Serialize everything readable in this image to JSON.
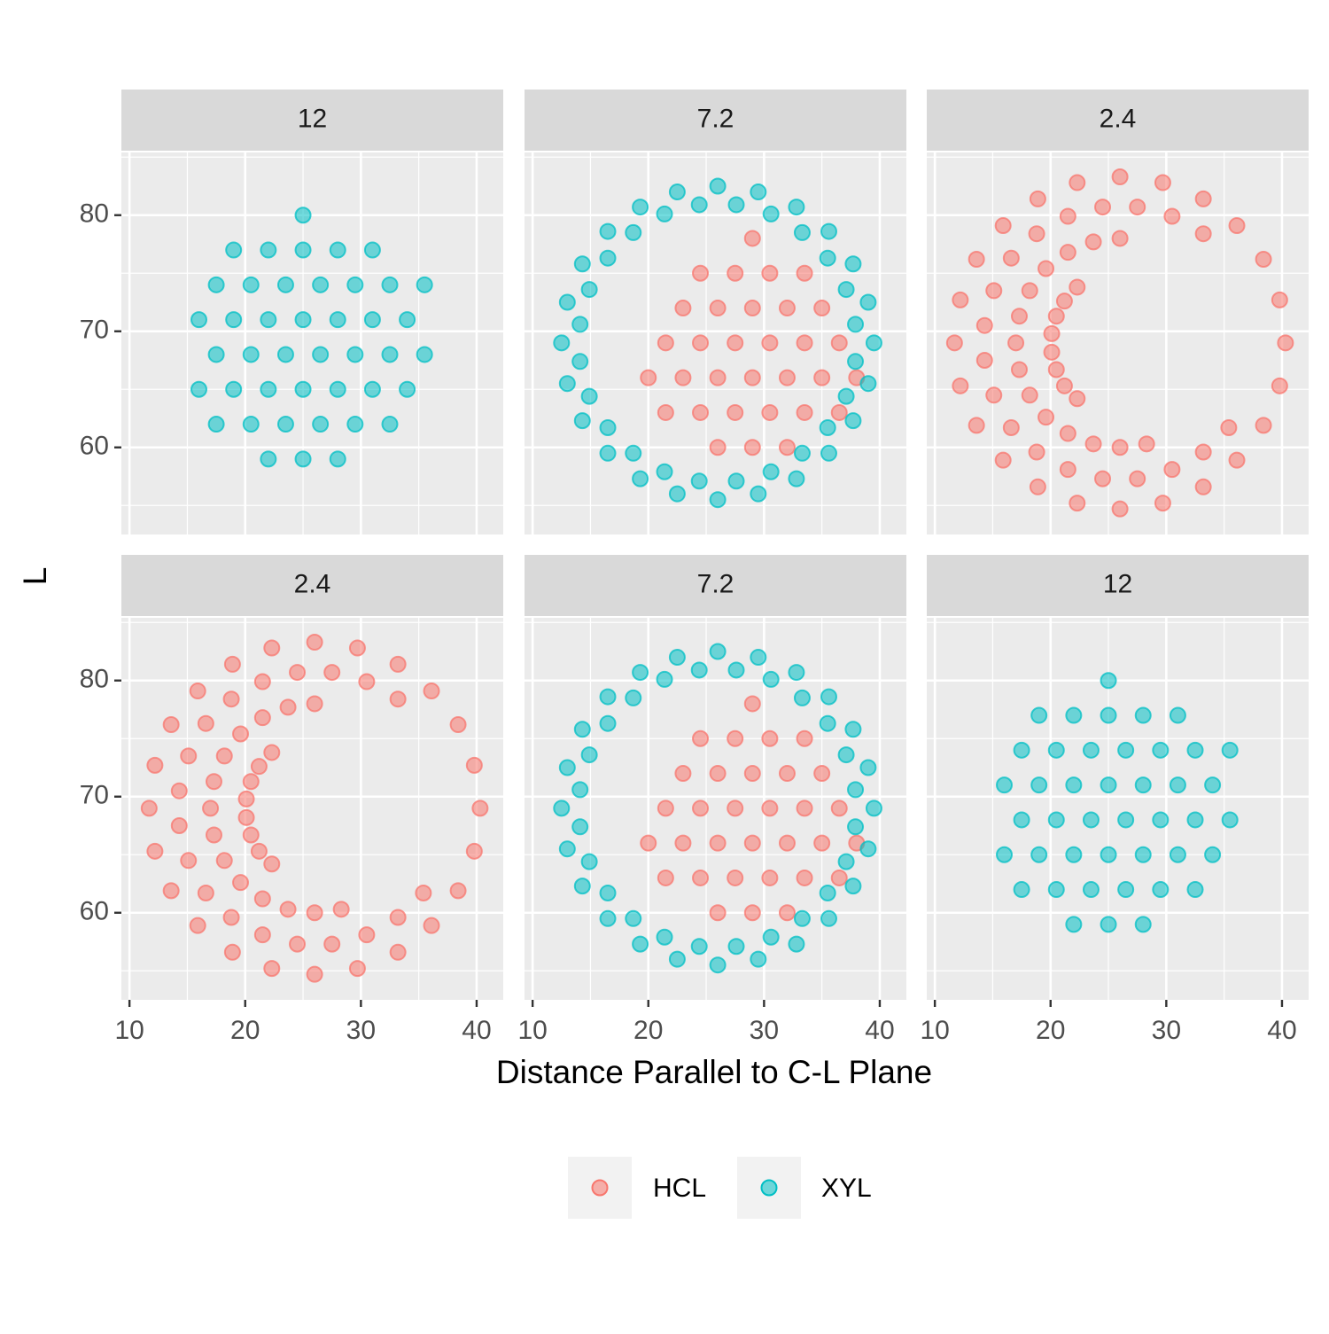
{
  "xlabel": "Distance Parallel to C-L Plane",
  "ylabel": "L",
  "chart_data": [
    {
      "type": "scatter",
      "title": "12",
      "xlim": [
        9.3,
        42.3
      ],
      "ylim": [
        52.5,
        85.4
      ],
      "xticks": [
        10,
        20,
        30,
        40
      ],
      "yticks": [
        60,
        70,
        80
      ],
      "xminor": [
        15,
        25,
        35
      ],
      "yminor": [
        55,
        65,
        75,
        85
      ],
      "grid": true,
      "series": [
        {
          "name": "XYL",
          "color": "#00BFC4",
          "alpha": 0.55,
          "x": [
            22,
            25,
            28,
            17.5,
            20.5,
            23.5,
            26.5,
            29.5,
            32.5,
            16,
            19,
            22,
            25,
            28,
            31,
            34,
            17.5,
            20.5,
            23.5,
            26.5,
            29.5,
            32.5,
            35.5,
            16,
            19,
            22,
            25,
            28,
            31,
            34,
            17.5,
            20.5,
            23.5,
            26.5,
            29.5,
            32.5,
            35.5,
            19,
            22,
            25,
            28,
            31,
            25
          ],
          "values": [
            59,
            59,
            59,
            62,
            62,
            62,
            62,
            62,
            62,
            65,
            65,
            65,
            65,
            65,
            65,
            65,
            68,
            68,
            68,
            68,
            68,
            68,
            68,
            71,
            71,
            71,
            71,
            71,
            71,
            71,
            74,
            74,
            74,
            74,
            74,
            74,
            74,
            77,
            77,
            77,
            77,
            77,
            80
          ]
        }
      ]
    },
    {
      "type": "scatter",
      "title": "7.2",
      "xlim": [
        9.3,
        42.3
      ],
      "ylim": [
        52.5,
        85.4
      ],
      "xticks": [
        10,
        20,
        30,
        40
      ],
      "yticks": [
        60,
        70,
        80
      ],
      "xminor": [
        15,
        25,
        35
      ],
      "yminor": [
        55,
        65,
        75,
        85
      ],
      "grid": true,
      "series": [
        {
          "name": "HCL",
          "color": "#F8766D",
          "alpha": 0.55,
          "x": [
            26,
            29,
            32,
            21.5,
            24.5,
            27.5,
            30.5,
            33.5,
            36.5,
            20,
            23,
            26,
            29,
            32,
            35,
            38,
            21.5,
            24.5,
            27.5,
            30.5,
            33.5,
            36.5,
            23,
            26,
            29,
            32,
            35,
            24.5,
            27.5,
            30.5,
            33.5,
            29
          ],
          "values": [
            60,
            60,
            60,
            63,
            63,
            63,
            63,
            63,
            63,
            66,
            66,
            66,
            66,
            66,
            66,
            66,
            69,
            69,
            69,
            69,
            69,
            69,
            72,
            72,
            72,
            72,
            72,
            75,
            75,
            75,
            75,
            78
          ]
        },
        {
          "name": "XYL",
          "color": "#00BFC4",
          "alpha": 0.55,
          "x": [
            39.5,
            39,
            37.7,
            35.6,
            32.8,
            29.5,
            26,
            22.5,
            19.3,
            16.5,
            14.3,
            13,
            12.5,
            13,
            14.3,
            16.5,
            19.3,
            22.5,
            26,
            29.5,
            32.8,
            35.6,
            37.7,
            39,
            37.9,
            37.1,
            35.5,
            33.3,
            30.6,
            27.6,
            24.4,
            21.4,
            18.7,
            16.5,
            14.9,
            14.1,
            14.1,
            14.9,
            16.5,
            18.7,
            21.4,
            24.4,
            27.6,
            30.6,
            33.3,
            35.5,
            37.1,
            37.9
          ],
          "values": [
            69,
            72.5,
            75.8,
            78.6,
            80.7,
            82,
            82.5,
            82,
            80.7,
            78.6,
            75.8,
            72.5,
            69,
            65.5,
            62.3,
            59.5,
            57.3,
            56,
            55.5,
            56,
            57.3,
            59.5,
            62.3,
            65.5,
            70.6,
            73.6,
            76.3,
            78.5,
            80.1,
            80.9,
            80.9,
            80.1,
            78.5,
            76.3,
            73.6,
            70.6,
            67.4,
            64.4,
            61.7,
            59.5,
            57.9,
            57.1,
            57.1,
            57.9,
            59.5,
            61.7,
            64.4,
            67.4
          ]
        }
      ]
    },
    {
      "type": "scatter",
      "title": "2.4",
      "xlim": [
        9.3,
        42.3
      ],
      "ylim": [
        52.5,
        85.4
      ],
      "xticks": [
        10,
        20,
        30,
        40
      ],
      "yticks": [
        60,
        70,
        80
      ],
      "xminor": [
        15,
        25,
        35
      ],
      "yminor": [
        55,
        65,
        75,
        85
      ],
      "grid": true,
      "series": [
        {
          "name": "HCL",
          "color": "#F8766D",
          "alpha": 0.55,
          "x": [
            40.3,
            39.8,
            38.4,
            36.1,
            33.2,
            29.7,
            26,
            22.3,
            18.9,
            15.9,
            13.6,
            12.2,
            11.7,
            12.2,
            13.6,
            15.9,
            18.9,
            22.3,
            26,
            29.7,
            33.2,
            36.1,
            38.4,
            39.8,
            33.2,
            30.5,
            27.5,
            24.5,
            21.5,
            18.8,
            16.6,
            15.1,
            14.3,
            14.3,
            15.1,
            16.6,
            18.8,
            21.5,
            24.5,
            27.5,
            30.5,
            33.2,
            35.4,
            26,
            23.7,
            21.5,
            19.6,
            18.2,
            17.3,
            17,
            17.3,
            18.2,
            19.6,
            21.5,
            23.7,
            26,
            28.3,
            21.2,
            20.5,
            20.1,
            20.1,
            20.5,
            21.2,
            22.3,
            22.3
          ],
          "values": [
            69,
            72.7,
            76.2,
            79.1,
            81.4,
            82.8,
            83.3,
            82.8,
            81.4,
            79.1,
            76.2,
            72.7,
            69,
            65.3,
            61.9,
            58.9,
            56.6,
            55.2,
            54.7,
            55.2,
            56.6,
            58.9,
            61.9,
            65.3,
            78.4,
            79.9,
            80.7,
            80.7,
            79.9,
            78.4,
            76.3,
            73.5,
            70.5,
            67.5,
            64.5,
            61.7,
            59.6,
            58.1,
            57.3,
            57.3,
            58.1,
            59.6,
            61.7,
            78,
            77.7,
            76.8,
            75.4,
            73.5,
            71.3,
            69,
            66.7,
            64.5,
            62.6,
            61.2,
            60.3,
            60,
            60.3,
            72.6,
            71.3,
            69.8,
            68.2,
            66.7,
            65.3,
            73.8,
            64.2
          ]
        }
      ]
    },
    {
      "type": "scatter",
      "title": "2.4",
      "xlim": [
        9.3,
        42.3
      ],
      "ylim": [
        52.5,
        85.4
      ],
      "xticks": [
        10,
        20,
        30,
        40
      ],
      "yticks": [
        60,
        70,
        80
      ],
      "xminor": [
        15,
        25,
        35
      ],
      "yminor": [
        55,
        65,
        75,
        85
      ],
      "grid": true,
      "series": [
        {
          "name": "HCL",
          "color": "#F8766D",
          "alpha": 0.55,
          "x": [
            40.3,
            39.8,
            38.4,
            36.1,
            33.2,
            29.7,
            26,
            22.3,
            18.9,
            15.9,
            13.6,
            12.2,
            11.7,
            12.2,
            13.6,
            15.9,
            18.9,
            22.3,
            26,
            29.7,
            33.2,
            36.1,
            38.4,
            39.8,
            33.2,
            30.5,
            27.5,
            24.5,
            21.5,
            18.8,
            16.6,
            15.1,
            14.3,
            14.3,
            15.1,
            16.6,
            18.8,
            21.5,
            24.5,
            27.5,
            30.5,
            33.2,
            35.4,
            26,
            23.7,
            21.5,
            19.6,
            18.2,
            17.3,
            17,
            17.3,
            18.2,
            19.6,
            21.5,
            23.7,
            26,
            28.3,
            21.2,
            20.5,
            20.1,
            20.1,
            20.5,
            21.2,
            22.3,
            22.3
          ],
          "values": [
            69,
            72.7,
            76.2,
            79.1,
            81.4,
            82.8,
            83.3,
            82.8,
            81.4,
            79.1,
            76.2,
            72.7,
            69,
            65.3,
            61.9,
            58.9,
            56.6,
            55.2,
            54.7,
            55.2,
            56.6,
            58.9,
            61.9,
            65.3,
            78.4,
            79.9,
            80.7,
            80.7,
            79.9,
            78.4,
            76.3,
            73.5,
            70.5,
            67.5,
            64.5,
            61.7,
            59.6,
            58.1,
            57.3,
            57.3,
            58.1,
            59.6,
            61.7,
            78,
            77.7,
            76.8,
            75.4,
            73.5,
            71.3,
            69,
            66.7,
            64.5,
            62.6,
            61.2,
            60.3,
            60,
            60.3,
            72.6,
            71.3,
            69.8,
            68.2,
            66.7,
            65.3,
            73.8,
            64.2
          ]
        }
      ]
    },
    {
      "type": "scatter",
      "title": "7.2",
      "xlim": [
        9.3,
        42.3
      ],
      "ylim": [
        52.5,
        85.4
      ],
      "xticks": [
        10,
        20,
        30,
        40
      ],
      "yticks": [
        60,
        70,
        80
      ],
      "xminor": [
        15,
        25,
        35
      ],
      "yminor": [
        55,
        65,
        75,
        85
      ],
      "grid": true,
      "series": [
        {
          "name": "HCL",
          "color": "#F8766D",
          "alpha": 0.55,
          "x": [
            26,
            29,
            32,
            21.5,
            24.5,
            27.5,
            30.5,
            33.5,
            36.5,
            20,
            23,
            26,
            29,
            32,
            35,
            38,
            21.5,
            24.5,
            27.5,
            30.5,
            33.5,
            36.5,
            23,
            26,
            29,
            32,
            35,
            24.5,
            27.5,
            30.5,
            33.5,
            29
          ],
          "values": [
            60,
            60,
            60,
            63,
            63,
            63,
            63,
            63,
            63,
            66,
            66,
            66,
            66,
            66,
            66,
            66,
            69,
            69,
            69,
            69,
            69,
            69,
            72,
            72,
            72,
            72,
            72,
            75,
            75,
            75,
            75,
            78
          ]
        },
        {
          "name": "XYL",
          "color": "#00BFC4",
          "alpha": 0.55,
          "x": [
            39.5,
            39,
            37.7,
            35.6,
            32.8,
            29.5,
            26,
            22.5,
            19.3,
            16.5,
            14.3,
            13,
            12.5,
            13,
            14.3,
            16.5,
            19.3,
            22.5,
            26,
            29.5,
            32.8,
            35.6,
            37.7,
            39,
            37.9,
            37.1,
            35.5,
            33.3,
            30.6,
            27.6,
            24.4,
            21.4,
            18.7,
            16.5,
            14.9,
            14.1,
            14.1,
            14.9,
            16.5,
            18.7,
            21.4,
            24.4,
            27.6,
            30.6,
            33.3,
            35.5,
            37.1,
            37.9
          ],
          "values": [
            69,
            72.5,
            75.8,
            78.6,
            80.7,
            82,
            82.5,
            82,
            80.7,
            78.6,
            75.8,
            72.5,
            69,
            65.5,
            62.3,
            59.5,
            57.3,
            56,
            55.5,
            56,
            57.3,
            59.5,
            62.3,
            65.5,
            70.6,
            73.6,
            76.3,
            78.5,
            80.1,
            80.9,
            80.9,
            80.1,
            78.5,
            76.3,
            73.6,
            70.6,
            67.4,
            64.4,
            61.7,
            59.5,
            57.9,
            57.1,
            57.1,
            57.9,
            59.5,
            61.7,
            64.4,
            67.4
          ]
        }
      ]
    },
    {
      "type": "scatter",
      "title": "12",
      "xlim": [
        9.3,
        42.3
      ],
      "ylim": [
        52.5,
        85.4
      ],
      "xticks": [
        10,
        20,
        30,
        40
      ],
      "yticks": [
        60,
        70,
        80
      ],
      "xminor": [
        15,
        25,
        35
      ],
      "yminor": [
        55,
        65,
        75,
        85
      ],
      "grid": true,
      "series": [
        {
          "name": "XYL",
          "color": "#00BFC4",
          "alpha": 0.55,
          "x": [
            22,
            25,
            28,
            17.5,
            20.5,
            23.5,
            26.5,
            29.5,
            32.5,
            16,
            19,
            22,
            25,
            28,
            31,
            34,
            17.5,
            20.5,
            23.5,
            26.5,
            29.5,
            32.5,
            35.5,
            16,
            19,
            22,
            25,
            28,
            31,
            34,
            17.5,
            20.5,
            23.5,
            26.5,
            29.5,
            32.5,
            35.5,
            19,
            22,
            25,
            28,
            31,
            25
          ],
          "values": [
            59,
            59,
            59,
            62,
            62,
            62,
            62,
            62,
            62,
            65,
            65,
            65,
            65,
            65,
            65,
            65,
            68,
            68,
            68,
            68,
            68,
            68,
            68,
            71,
            71,
            71,
            71,
            71,
            71,
            71,
            74,
            74,
            74,
            74,
            74,
            74,
            74,
            77,
            77,
            77,
            77,
            77,
            80
          ]
        }
      ]
    }
  ]
}
